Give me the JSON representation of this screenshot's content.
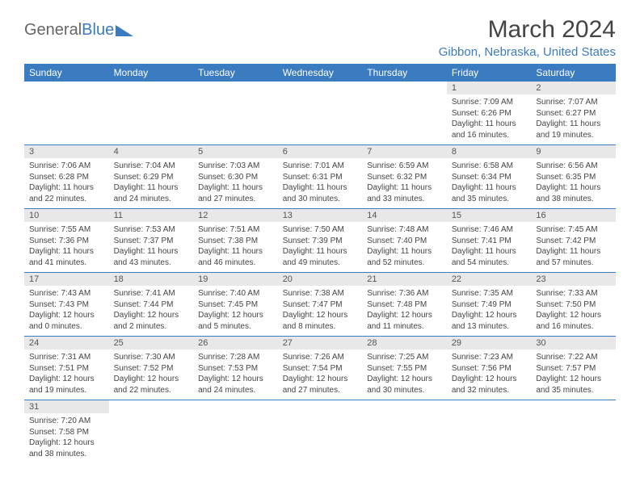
{
  "logo": {
    "general": "General",
    "blue": "Blue"
  },
  "title": "March 2024",
  "location": "Gibbon, Nebraska, United States",
  "colors": {
    "accent": "#3b7bbf",
    "daynum_bg": "#e8e8e8",
    "text": "#444444"
  },
  "weekdays": [
    "Sunday",
    "Monday",
    "Tuesday",
    "Wednesday",
    "Thursday",
    "Friday",
    "Saturday"
  ],
  "weeks": [
    [
      null,
      null,
      null,
      null,
      null,
      {
        "n": "1",
        "sr": "Sunrise: 7:09 AM",
        "ss": "Sunset: 6:26 PM",
        "dl": "Daylight: 11 hours and 16 minutes."
      },
      {
        "n": "2",
        "sr": "Sunrise: 7:07 AM",
        "ss": "Sunset: 6:27 PM",
        "dl": "Daylight: 11 hours and 19 minutes."
      }
    ],
    [
      {
        "n": "3",
        "sr": "Sunrise: 7:06 AM",
        "ss": "Sunset: 6:28 PM",
        "dl": "Daylight: 11 hours and 22 minutes."
      },
      {
        "n": "4",
        "sr": "Sunrise: 7:04 AM",
        "ss": "Sunset: 6:29 PM",
        "dl": "Daylight: 11 hours and 24 minutes."
      },
      {
        "n": "5",
        "sr": "Sunrise: 7:03 AM",
        "ss": "Sunset: 6:30 PM",
        "dl": "Daylight: 11 hours and 27 minutes."
      },
      {
        "n": "6",
        "sr": "Sunrise: 7:01 AM",
        "ss": "Sunset: 6:31 PM",
        "dl": "Daylight: 11 hours and 30 minutes."
      },
      {
        "n": "7",
        "sr": "Sunrise: 6:59 AM",
        "ss": "Sunset: 6:32 PM",
        "dl": "Daylight: 11 hours and 33 minutes."
      },
      {
        "n": "8",
        "sr": "Sunrise: 6:58 AM",
        "ss": "Sunset: 6:34 PM",
        "dl": "Daylight: 11 hours and 35 minutes."
      },
      {
        "n": "9",
        "sr": "Sunrise: 6:56 AM",
        "ss": "Sunset: 6:35 PM",
        "dl": "Daylight: 11 hours and 38 minutes."
      }
    ],
    [
      {
        "n": "10",
        "sr": "Sunrise: 7:55 AM",
        "ss": "Sunset: 7:36 PM",
        "dl": "Daylight: 11 hours and 41 minutes."
      },
      {
        "n": "11",
        "sr": "Sunrise: 7:53 AM",
        "ss": "Sunset: 7:37 PM",
        "dl": "Daylight: 11 hours and 43 minutes."
      },
      {
        "n": "12",
        "sr": "Sunrise: 7:51 AM",
        "ss": "Sunset: 7:38 PM",
        "dl": "Daylight: 11 hours and 46 minutes."
      },
      {
        "n": "13",
        "sr": "Sunrise: 7:50 AM",
        "ss": "Sunset: 7:39 PM",
        "dl": "Daylight: 11 hours and 49 minutes."
      },
      {
        "n": "14",
        "sr": "Sunrise: 7:48 AM",
        "ss": "Sunset: 7:40 PM",
        "dl": "Daylight: 11 hours and 52 minutes."
      },
      {
        "n": "15",
        "sr": "Sunrise: 7:46 AM",
        "ss": "Sunset: 7:41 PM",
        "dl": "Daylight: 11 hours and 54 minutes."
      },
      {
        "n": "16",
        "sr": "Sunrise: 7:45 AM",
        "ss": "Sunset: 7:42 PM",
        "dl": "Daylight: 11 hours and 57 minutes."
      }
    ],
    [
      {
        "n": "17",
        "sr": "Sunrise: 7:43 AM",
        "ss": "Sunset: 7:43 PM",
        "dl": "Daylight: 12 hours and 0 minutes."
      },
      {
        "n": "18",
        "sr": "Sunrise: 7:41 AM",
        "ss": "Sunset: 7:44 PM",
        "dl": "Daylight: 12 hours and 2 minutes."
      },
      {
        "n": "19",
        "sr": "Sunrise: 7:40 AM",
        "ss": "Sunset: 7:45 PM",
        "dl": "Daylight: 12 hours and 5 minutes."
      },
      {
        "n": "20",
        "sr": "Sunrise: 7:38 AM",
        "ss": "Sunset: 7:47 PM",
        "dl": "Daylight: 12 hours and 8 minutes."
      },
      {
        "n": "21",
        "sr": "Sunrise: 7:36 AM",
        "ss": "Sunset: 7:48 PM",
        "dl": "Daylight: 12 hours and 11 minutes."
      },
      {
        "n": "22",
        "sr": "Sunrise: 7:35 AM",
        "ss": "Sunset: 7:49 PM",
        "dl": "Daylight: 12 hours and 13 minutes."
      },
      {
        "n": "23",
        "sr": "Sunrise: 7:33 AM",
        "ss": "Sunset: 7:50 PM",
        "dl": "Daylight: 12 hours and 16 minutes."
      }
    ],
    [
      {
        "n": "24",
        "sr": "Sunrise: 7:31 AM",
        "ss": "Sunset: 7:51 PM",
        "dl": "Daylight: 12 hours and 19 minutes."
      },
      {
        "n": "25",
        "sr": "Sunrise: 7:30 AM",
        "ss": "Sunset: 7:52 PM",
        "dl": "Daylight: 12 hours and 22 minutes."
      },
      {
        "n": "26",
        "sr": "Sunrise: 7:28 AM",
        "ss": "Sunset: 7:53 PM",
        "dl": "Daylight: 12 hours and 24 minutes."
      },
      {
        "n": "27",
        "sr": "Sunrise: 7:26 AM",
        "ss": "Sunset: 7:54 PM",
        "dl": "Daylight: 12 hours and 27 minutes."
      },
      {
        "n": "28",
        "sr": "Sunrise: 7:25 AM",
        "ss": "Sunset: 7:55 PM",
        "dl": "Daylight: 12 hours and 30 minutes."
      },
      {
        "n": "29",
        "sr": "Sunrise: 7:23 AM",
        "ss": "Sunset: 7:56 PM",
        "dl": "Daylight: 12 hours and 32 minutes."
      },
      {
        "n": "30",
        "sr": "Sunrise: 7:22 AM",
        "ss": "Sunset: 7:57 PM",
        "dl": "Daylight: 12 hours and 35 minutes."
      }
    ],
    [
      {
        "n": "31",
        "sr": "Sunrise: 7:20 AM",
        "ss": "Sunset: 7:58 PM",
        "dl": "Daylight: 12 hours and 38 minutes."
      },
      null,
      null,
      null,
      null,
      null,
      null
    ]
  ]
}
